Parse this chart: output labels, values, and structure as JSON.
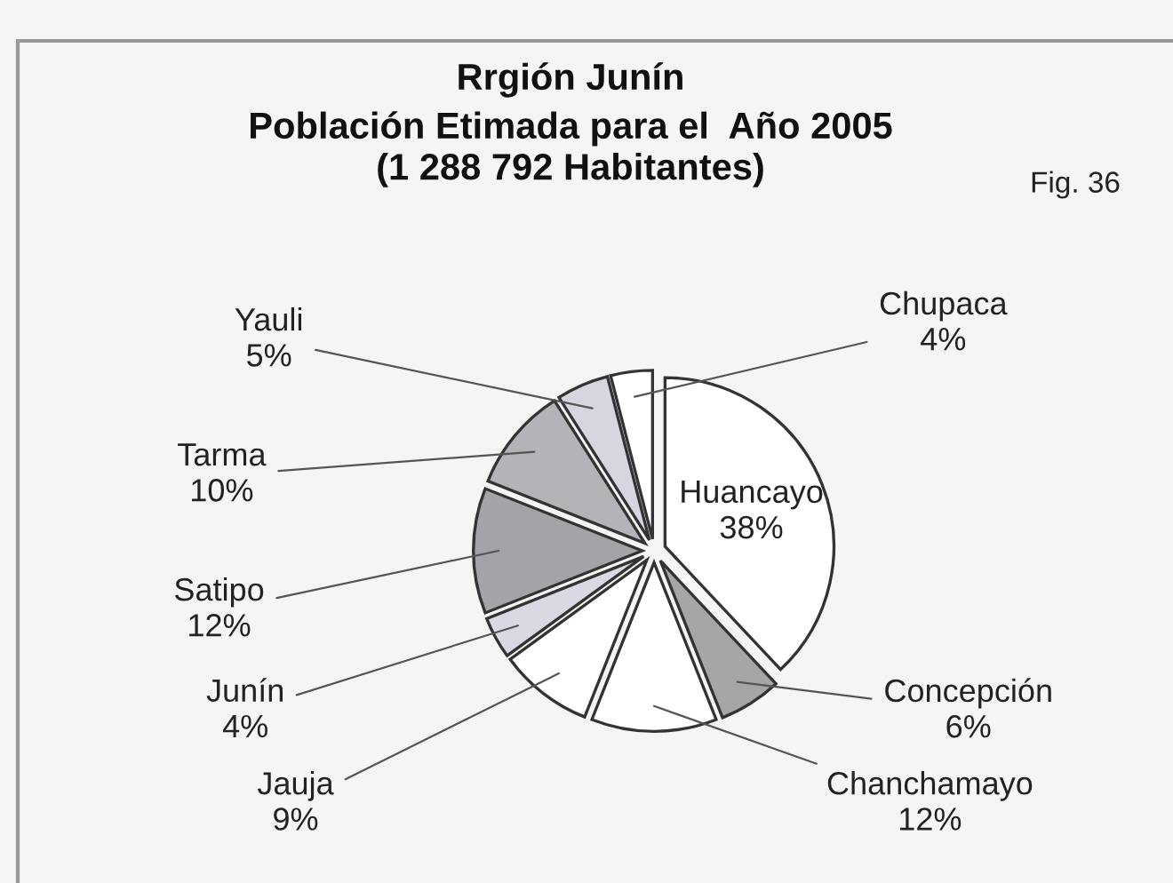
{
  "chart_data": {
    "type": "pie",
    "title": "Rrgión Junín",
    "subtitle": "Población Etimada para el  Año 2005\n(1 288 792 Habitantes)",
    "categories": [
      "Huancayo",
      "Concepción",
      "Chanchamayo",
      "Jauja",
      "Junín",
      "Satipo",
      "Tarma",
      "Yauli",
      "Chupaca"
    ],
    "values": [
      38,
      6,
      12,
      9,
      4,
      12,
      10,
      5,
      4
    ],
    "value_labels": [
      "38%",
      "6%",
      "12%",
      "9%",
      "4%",
      "12%",
      "10%",
      "5%",
      "4%"
    ],
    "colors": [
      "#ffffff",
      "#a6a6a6",
      "#ffffff",
      "#ffffff",
      "#d9d9e3",
      "#a3a3a8",
      "#b3b3b8",
      "#d6d6e0",
      "#ffffff"
    ],
    "annotations": [
      "Fig. 36"
    ]
  }
}
